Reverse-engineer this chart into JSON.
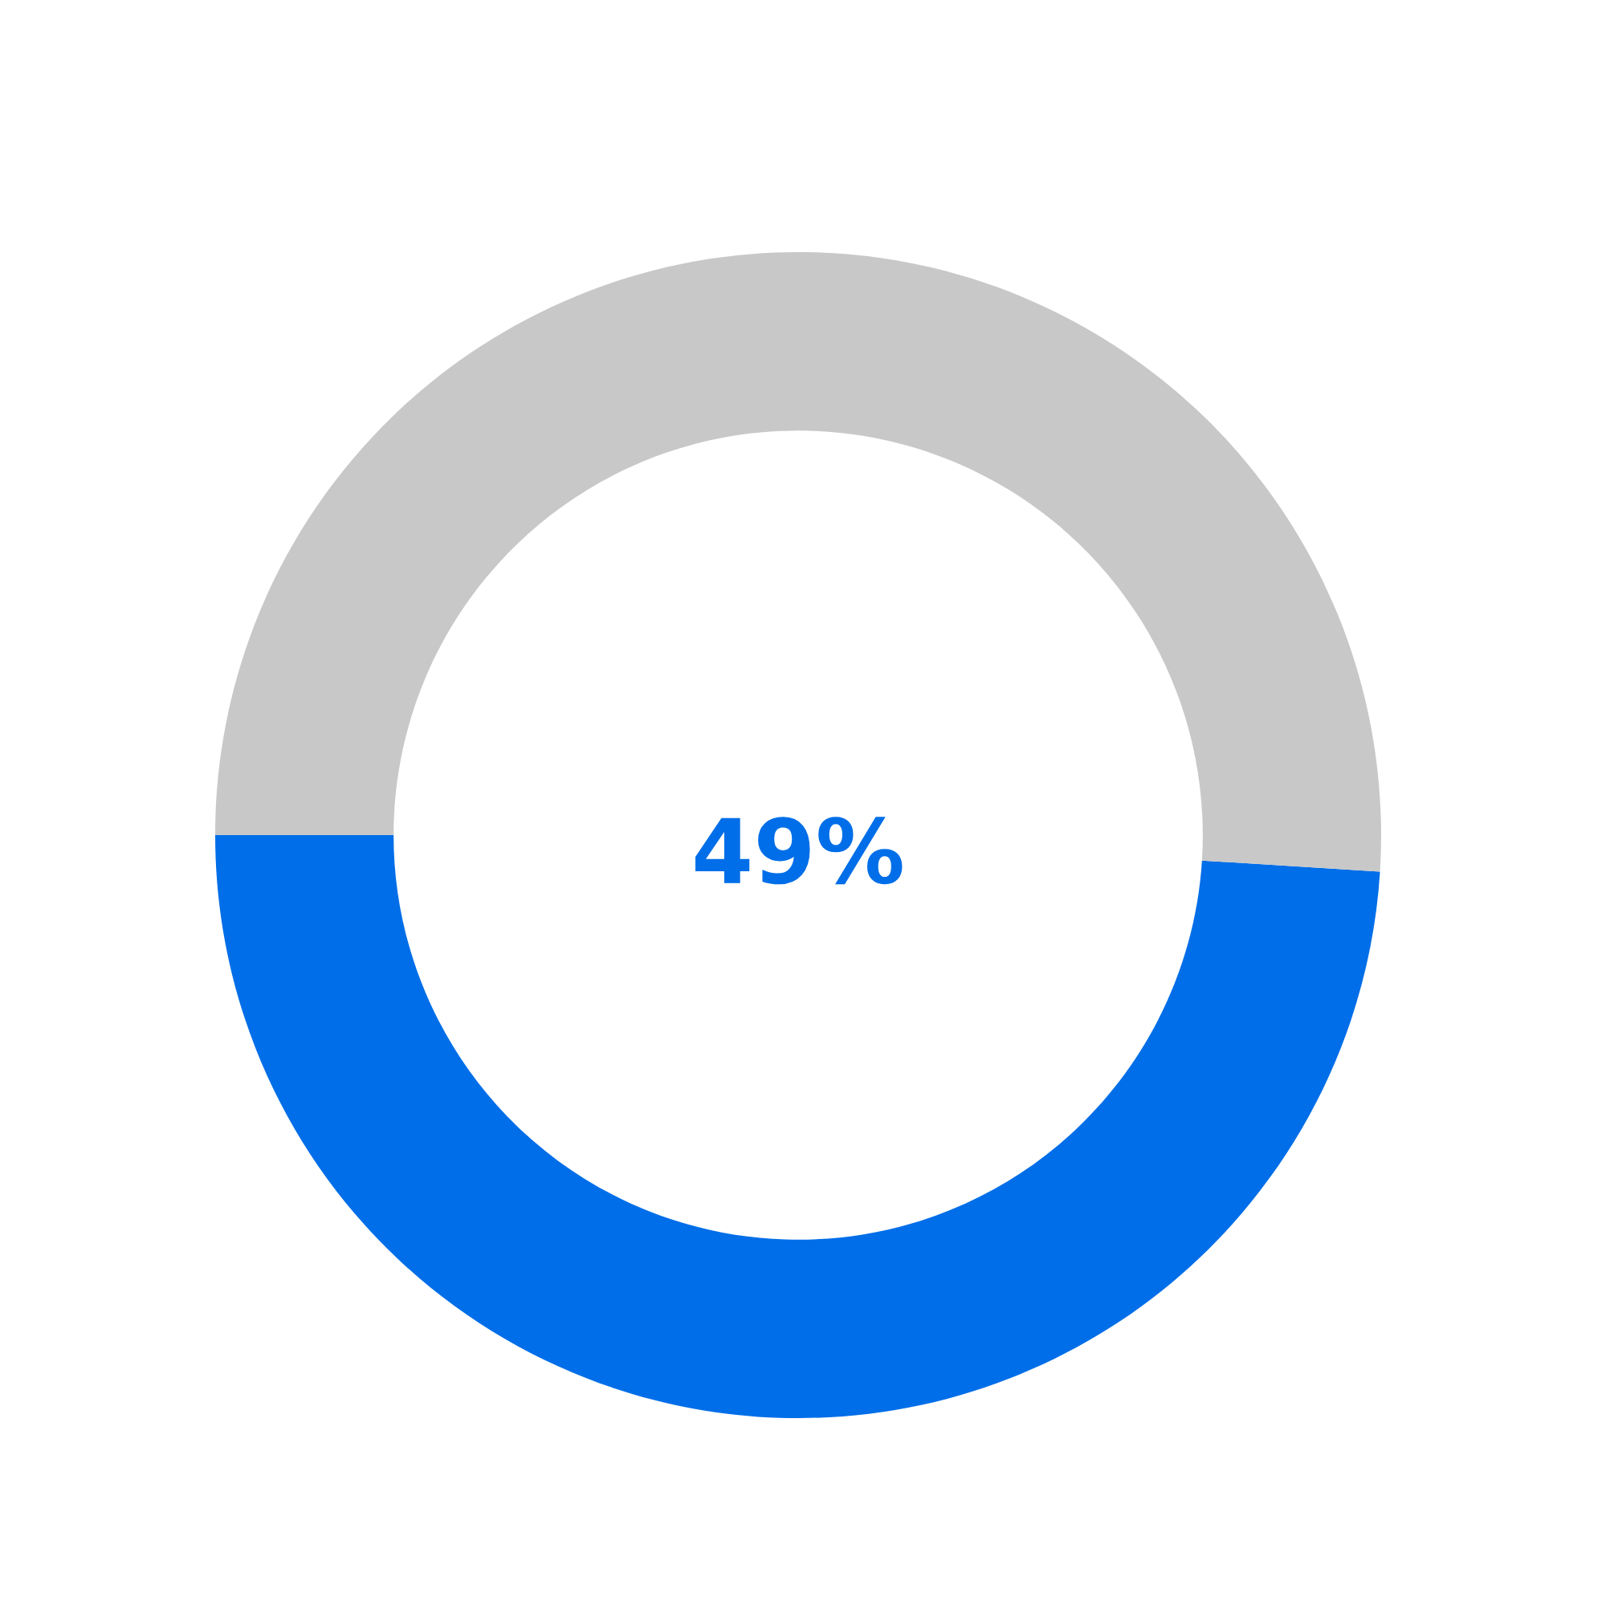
{
  "chart_data": {
    "type": "donut",
    "categories": [
      null,
      null
    ],
    "values": [
      49,
      51
    ],
    "colors": [
      "#006ee8",
      "#c8c8c8"
    ],
    "annotations": [
      "49%"
    ]
  }
}
